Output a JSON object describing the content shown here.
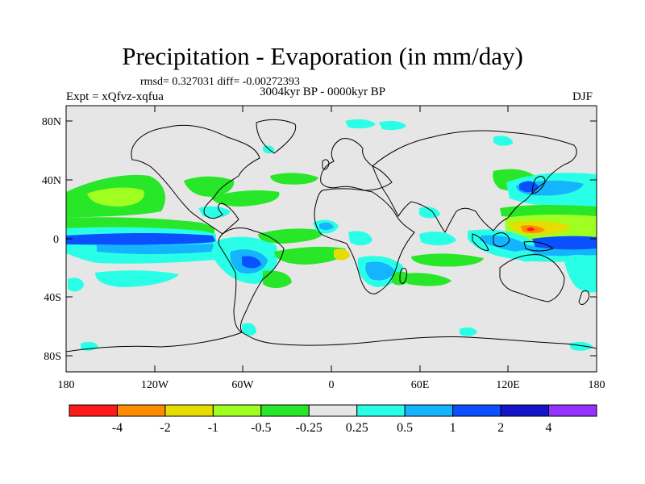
{
  "header": {
    "title": "Precipitation - Evaporation (in mm/day)",
    "stats": "rmsd= 0.327031  diff= -0.00272393",
    "experiment": "Expt = xQfvz-xqfua",
    "period": "3004kyr BP - 0000kyr BP",
    "season": "DJF"
  },
  "map": {
    "lat_labels": [
      "80N",
      "40N",
      "0",
      "40S",
      "80S"
    ],
    "lon_labels": [
      "180",
      "120W",
      "60W",
      "0",
      "60E",
      "120E",
      "180"
    ],
    "background_color": "#e6e6e6"
  },
  "colorbar": {
    "colors": [
      "#ff1a1a",
      "#ff8c00",
      "#e6dc00",
      "#a0ff20",
      "#28e628",
      "#e6e6e6",
      "#28ffe6",
      "#14b4ff",
      "#0a50ff",
      "#1414c8",
      "#9632ff"
    ],
    "labels": [
      "-4",
      "-2",
      "-1",
      "-0.5",
      "-0.25",
      "0.25",
      "0.5",
      "1",
      "2",
      "4"
    ]
  }
}
